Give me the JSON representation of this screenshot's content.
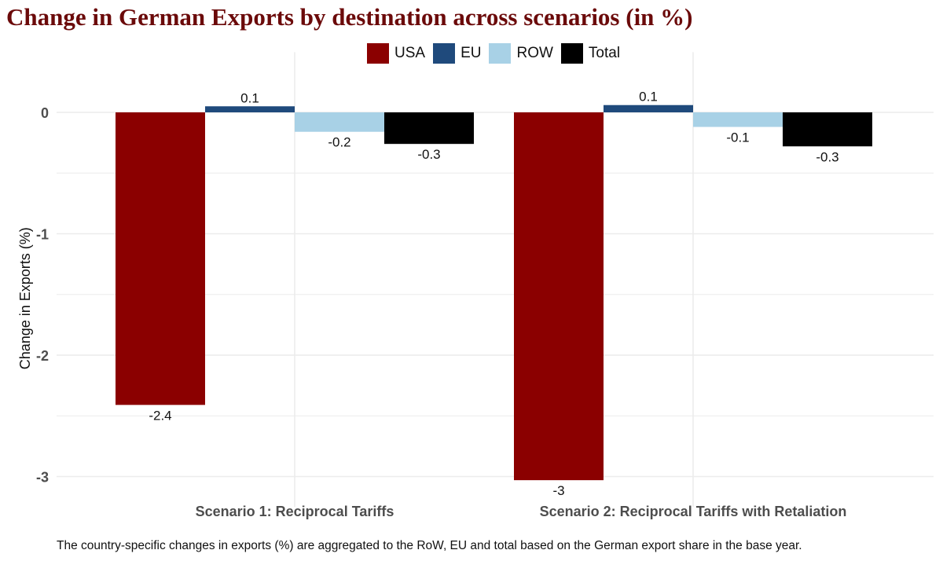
{
  "title": "Change in German Exports by destination across scenarios (in %)",
  "footnote": "The country-specific changes in exports (%) are aggregated to the RoW, EU and total based on the German export share in the base year.",
  "colors": {
    "title": "#6b0a0a",
    "USA": "#8b0000",
    "EU": "#1f4a7c",
    "ROW": "#a8d1e6",
    "Total": "#000000",
    "grid": "#ececec"
  },
  "chart_data": {
    "type": "bar",
    "title": "Change in German Exports by destination across scenarios (in %)",
    "xlabel": "",
    "ylabel": "Change in Exports (%)",
    "ylim": [
      -3.25,
      0.25
    ],
    "yticks": [
      0,
      -1,
      -2,
      -3
    ],
    "grid": true,
    "legend_position": "top",
    "categories": [
      "Scenario 1: Reciprocal Tariffs",
      "Scenario 2: Reciprocal Tariffs with Retaliation"
    ],
    "series": [
      {
        "name": "USA",
        "values": [
          -2.41,
          -3.03
        ],
        "labels": [
          "-2.4",
          "-3"
        ]
      },
      {
        "name": "EU",
        "values": [
          0.05,
          0.06
        ],
        "labels": [
          "0.1",
          "0.1"
        ]
      },
      {
        "name": "ROW",
        "values": [
          -0.16,
          -0.12
        ],
        "labels": [
          "-0.2",
          "-0.1"
        ]
      },
      {
        "name": "Total",
        "values": [
          -0.26,
          -0.28
        ],
        "labels": [
          "-0.3",
          "-0.3"
        ]
      }
    ]
  }
}
